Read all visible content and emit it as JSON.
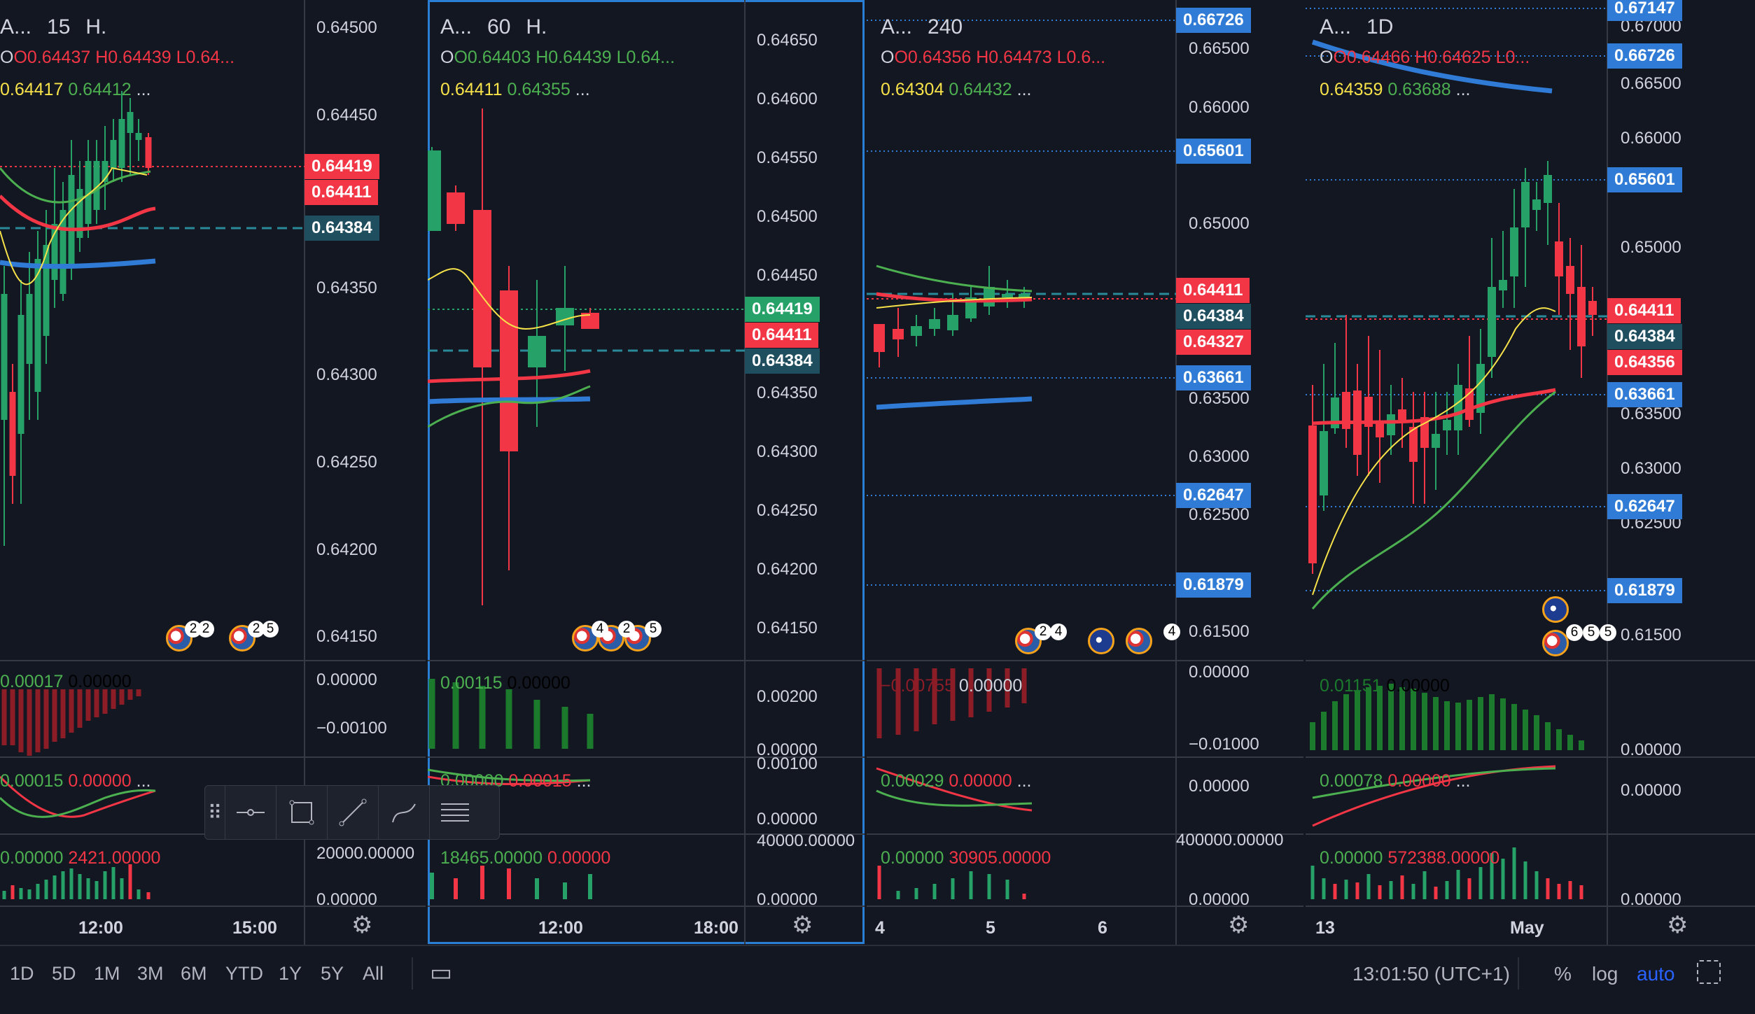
{
  "colors": {
    "bg": "#131722",
    "up": "#26a269",
    "down": "#f23645",
    "yellow": "#f7e24a",
    "ema_green": "#4caf50",
    "ema_red": "#f23645",
    "ema_blue": "#2f7bd6",
    "accent": "#2962ff",
    "tag_blue": "#2f7bd6",
    "tag_teal": "#1f4e5f"
  },
  "panes": [
    {
      "symbol": "A...",
      "interval": "15",
      "suffix": "H.",
      "ohlc": {
        "o": "O0.64437",
        "h": "H0.64439",
        "l": "L0.64..."
      },
      "ind": {
        "v1": "0.64417",
        "v2": "0.64412",
        "more": "..."
      },
      "macd": {
        "v1": "0.00017",
        "v2": "0.00000"
      },
      "osc": {
        "v1": "0.00015",
        "v2": "0.00000",
        "more": "..."
      },
      "vol": {
        "v1": "0.00000",
        "v2": "2421.00000"
      },
      "price_axis": [
        "0.64500",
        "0.64450",
        "0.64400",
        "0.64350",
        "0.64300",
        "0.64250",
        "0.64200",
        "0.64150"
      ],
      "macd_axis": [
        "0.00000",
        "−0.00100"
      ],
      "vol_axis": [
        "20000.00000",
        "0.00000"
      ],
      "tags": [
        {
          "text": "0.64419",
          "color": "down"
        },
        {
          "text": "0.64411",
          "color": "down"
        },
        {
          "text": "0.64384",
          "color": "teal"
        }
      ],
      "time_axis": [
        "12:00",
        "15:00"
      ],
      "events": [
        "2",
        "2",
        "2",
        "5"
      ]
    },
    {
      "symbol": "A...",
      "interval": "60",
      "suffix": "H.",
      "ohlc": {
        "o": "O0.64403",
        "h": "H0.64439",
        "l": "L0.64..."
      },
      "ind": {
        "v1": "0.64411",
        "v2": "0.64355",
        "more": "..."
      },
      "macd": {
        "v1": "0.00115",
        "v2": "0.00000"
      },
      "osc": {
        "v1": "0.00000",
        "v2": "0.00015",
        "more": "..."
      },
      "vol": {
        "v1": "18465.00000",
        "v2": "0.00000"
      },
      "price_axis": [
        "0.64650",
        "0.64600",
        "0.64550",
        "0.64500",
        "0.64450",
        "0.64350",
        "0.64300",
        "0.64250",
        "0.64200",
        "0.64150"
      ],
      "macd_axis": [
        "0.00200",
        "0.00000"
      ],
      "osc_axis": [
        "0.00100",
        "0.00000"
      ],
      "vol_axis": [
        "40000.00000",
        "0.00000"
      ],
      "tags": [
        {
          "text": "0.64419",
          "color": "up"
        },
        {
          "text": "0.64411",
          "color": "down"
        },
        {
          "text": "0.64384",
          "color": "teal"
        }
      ],
      "time_axis": [
        "12:00",
        "18:00"
      ],
      "events": [
        "4",
        "2",
        "5"
      ]
    },
    {
      "symbol": "A...",
      "interval": "240",
      "suffix": "",
      "ohlc": {
        "o": "O0.64356",
        "h": "H0.64473",
        "l": "L0.6..."
      },
      "ind": {
        "v1": "0.64304",
        "v2": "0.64432",
        "more": "..."
      },
      "macd": {
        "v1": "−0.00755",
        "v2": "0.00000"
      },
      "osc": {
        "v1": "0.00029",
        "v2": "0.00000",
        "more": "..."
      },
      "vol": {
        "v1": "0.00000",
        "v2": "30905.00000"
      },
      "price_axis": [
        "0.66500",
        "0.66000",
        "0.65000",
        "0.63500",
        "0.63000",
        "0.62500",
        "0.61500"
      ],
      "macd_axis": [
        "0.00000",
        "−0.01000"
      ],
      "osc_axis": [
        "0.00000"
      ],
      "vol_axis": [
        "400000.00000",
        "0.00000"
      ],
      "tags": [
        {
          "text": "0.66726",
          "color": "blue"
        },
        {
          "text": "0.65601",
          "color": "blue"
        },
        {
          "text": "0.64411",
          "color": "down"
        },
        {
          "text": "0.64384",
          "color": "teal"
        },
        {
          "text": "0.64327",
          "color": "down"
        },
        {
          "text": "0.63661",
          "color": "blue"
        },
        {
          "text": "0.62647",
          "color": "blue"
        },
        {
          "text": "0.61879",
          "color": "blue"
        }
      ],
      "time_axis": [
        "4",
        "5",
        "6"
      ],
      "events": [
        "2",
        "4",
        "4"
      ]
    },
    {
      "symbol": "A...",
      "interval": "1D",
      "suffix": "",
      "ohlc": {
        "o": "O0.64466",
        "h": "H0.64625",
        "l": "L0..."
      },
      "ind": {
        "v1": "0.64359",
        "v2": "0.63688",
        "more": "..."
      },
      "macd": {
        "v1": "0.01151",
        "v2": "0.00000"
      },
      "osc": {
        "v1": "0.00078",
        "v2": "0.00000",
        "more": "..."
      },
      "vol": {
        "v1": "0.00000",
        "v2": "572388.00000"
      },
      "price_axis": [
        "0.67000",
        "0.66500",
        "0.66000",
        "0.65000",
        "0.63500",
        "0.63000",
        "0.62500",
        "0.61500"
      ],
      "macd_axis": [
        "0.00000"
      ],
      "osc_axis": [
        "0.00000"
      ],
      "vol_axis": [
        "0.00000"
      ],
      "tags": [
        {
          "text": "0.67147",
          "color": "blue"
        },
        {
          "text": "0.66726",
          "color": "blue"
        },
        {
          "text": "0.65601",
          "color": "blue"
        },
        {
          "text": "0.64411",
          "color": "down"
        },
        {
          "text": "0.64384",
          "color": "teal"
        },
        {
          "text": "0.64356",
          "color": "down"
        },
        {
          "text": "0.63661",
          "color": "blue"
        },
        {
          "text": "0.62647",
          "color": "blue"
        },
        {
          "text": "0.61879",
          "color": "blue"
        }
      ],
      "time_axis": [
        "13",
        "May"
      ],
      "events": [
        "6",
        "5",
        "5"
      ]
    }
  ],
  "toolbar": {
    "icons": [
      "drag-grip-icon",
      "horizontal-ray-icon",
      "rectangle-icon",
      "trend-line-icon",
      "brush-icon",
      "fib-lines-icon"
    ]
  },
  "bottombar": {
    "ranges": [
      "1D",
      "5D",
      "1M",
      "3M",
      "6M",
      "YTD",
      "1Y",
      "5Y",
      "All"
    ],
    "clock": "13:01:50 (UTC+1)",
    "percent": "%",
    "log": "log",
    "auto": "auto"
  }
}
